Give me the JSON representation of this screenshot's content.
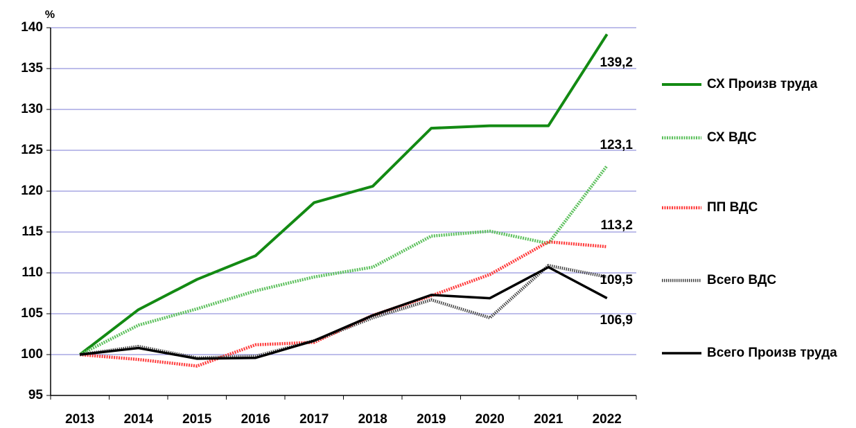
{
  "chart_data": {
    "type": "line",
    "ylabel": "%",
    "categories": [
      "2013",
      "2014",
      "2015",
      "2016",
      "2017",
      "2018",
      "2019",
      "2020",
      "2021",
      "2022"
    ],
    "series": [
      {
        "name": "СХ Произв труда",
        "color": "#138a13",
        "values": [
          100,
          105.5,
          109.2,
          112.1,
          118.6,
          120.6,
          127.7,
          128,
          128,
          139.2
        ],
        "value_labels": [
          null,
          null,
          null,
          null,
          null,
          null,
          null,
          null,
          null,
          "139,2"
        ]
      },
      {
        "name": "СХ ВДС",
        "color": "#5cc05c",
        "values": [
          100,
          103.6,
          105.6,
          107.8,
          109.5,
          110.7,
          114.5,
          115.1,
          113.6,
          123.1
        ],
        "value_labels": [
          null,
          null,
          null,
          null,
          null,
          null,
          null,
          null,
          null,
          "123,1"
        ]
      },
      {
        "name": "ПП ВДС",
        "color": "#ff3a3a",
        "values": [
          100,
          99.4,
          98.6,
          101.2,
          101.5,
          104.8,
          107.2,
          109.8,
          113.8,
          113.2
        ],
        "value_labels": [
          null,
          null,
          null,
          null,
          null,
          null,
          null,
          null,
          null,
          "113,2"
        ]
      },
      {
        "name": "Всего ВДС",
        "color": "#444444",
        "values": [
          100,
          101,
          99.6,
          99.8,
          101.7,
          104.5,
          106.7,
          104.5,
          110.9,
          109.5
        ],
        "value_labels": [
          null,
          null,
          null,
          null,
          null,
          null,
          null,
          null,
          null,
          "109,5"
        ]
      },
      {
        "name": "Всего Произв труда",
        "color": "#000000",
        "values": [
          100,
          100.8,
          99.5,
          99.6,
          101.7,
          104.8,
          107.3,
          106.9,
          110.7,
          106.9
        ],
        "value_labels": [
          null,
          null,
          null,
          null,
          null,
          null,
          null,
          null,
          null,
          "106,9"
        ]
      }
    ],
    "ylim": [
      95,
      140
    ],
    "yticks": [
      95,
      100,
      105,
      110,
      115,
      120,
      125,
      130,
      135,
      140
    ],
    "grid": true
  }
}
